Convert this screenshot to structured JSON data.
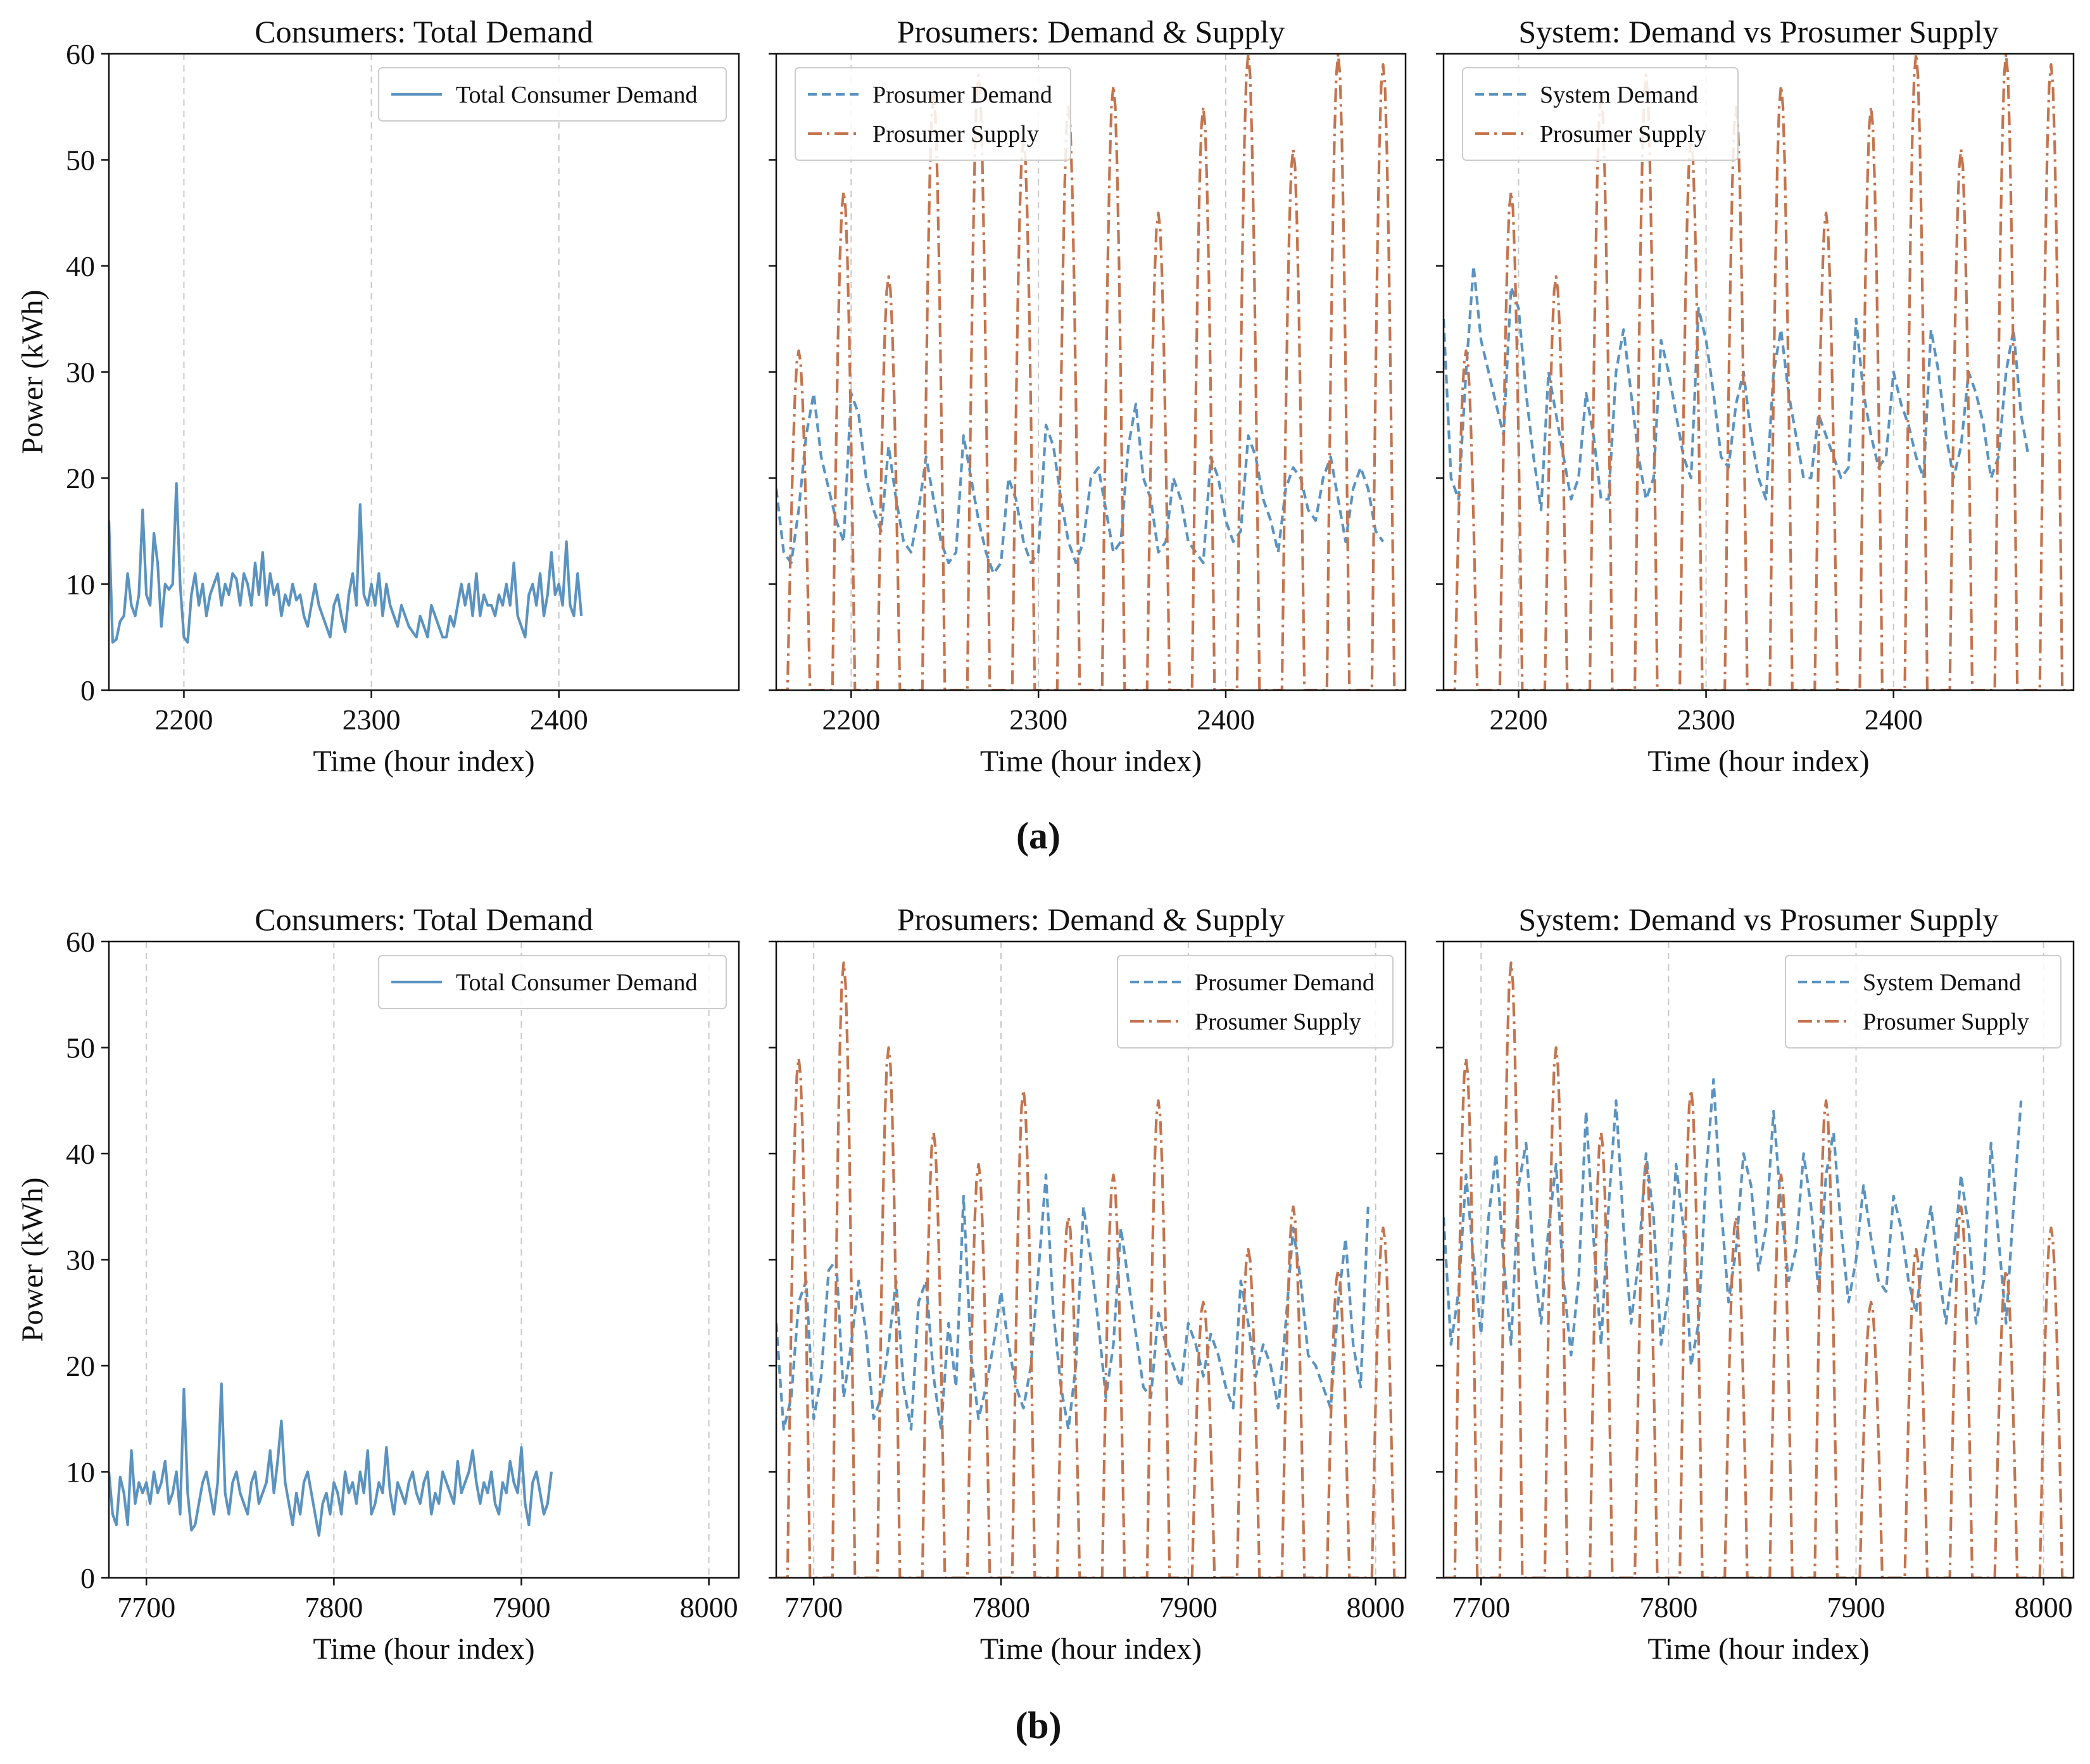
{
  "figure": {
    "subfigure_labels": [
      "(a)",
      "(b)"
    ]
  },
  "colors": {
    "demand": "#5b93c0",
    "supply": "#c4744e"
  },
  "chart_data": [
    {
      "type": "line",
      "row": 0,
      "col": 0,
      "title": "Consumers: Total Demand",
      "xlabel": "Time (hour index)",
      "ylabel": "Power (kWh)",
      "xlim": [
        2160,
        2496
      ],
      "ylim": [
        0,
        60
      ],
      "xticks": [
        2200,
        2300,
        2400
      ],
      "yticks": [
        0,
        10,
        20,
        30,
        40,
        50,
        60
      ],
      "legend_position": "top-right",
      "series": [
        {
          "name": "Total Consumer Demand",
          "style": "solid",
          "color_key": "demand",
          "x_start": 2160,
          "x_step": 2,
          "values": [
            16,
            4.5,
            4.8,
            6.5,
            7,
            11,
            8,
            7,
            9,
            17,
            9,
            8,
            14.8,
            12,
            6,
            10,
            9.5,
            10,
            19.5,
            10,
            5,
            4.5,
            9,
            11,
            8,
            10,
            7,
            9,
            10,
            11,
            8,
            10,
            9,
            11,
            10.5,
            8,
            11,
            10,
            8,
            12,
            9,
            13,
            8,
            11,
            9,
            10,
            7,
            9,
            8,
            10,
            8.5,
            9,
            7,
            6,
            8,
            10,
            8,
            7,
            6,
            5,
            8,
            9,
            7,
            5.5,
            9,
            11,
            8,
            17.5,
            9,
            8,
            10,
            8,
            11,
            7,
            10,
            8,
            7,
            6,
            8,
            7,
            6,
            5.5,
            5,
            7,
            6,
            5,
            8,
            7,
            6,
            5,
            5,
            7,
            6,
            8,
            10,
            8,
            10,
            7,
            11,
            7,
            9,
            8,
            8,
            7,
            9,
            8,
            10,
            8,
            12,
            7,
            6,
            5,
            9,
            10,
            8,
            11,
            7,
            9,
            13,
            9,
            10,
            8,
            14,
            8,
            7,
            11,
            7
          ]
        }
      ]
    },
    {
      "type": "line",
      "row": 0,
      "col": 1,
      "title": "Prosumers: Demand & Supply",
      "xlabel": "Time (hour index)",
      "xlim": [
        2160,
        2496
      ],
      "ylim": [
        0,
        60
      ],
      "xticks": [
        2200,
        2300,
        2400
      ],
      "legend_position": "top-left",
      "series": [
        {
          "name": "Prosumer Demand",
          "style": "dashed",
          "color_key": "demand",
          "x_start": 2160,
          "x_step": 4,
          "values": [
            19,
            13,
            12,
            17,
            24,
            28,
            22,
            19,
            16,
            14,
            28,
            26,
            20,
            17,
            15,
            23,
            18,
            14,
            13,
            17,
            22,
            18,
            14,
            12,
            13,
            24,
            20,
            16,
            13,
            11,
            12,
            20,
            18,
            14,
            12,
            13,
            25,
            23,
            18,
            14,
            12,
            14,
            20,
            21,
            17,
            13,
            14,
            23,
            27,
            20,
            18,
            13,
            14,
            20,
            18,
            14,
            13,
            12,
            22,
            20,
            16,
            14,
            15,
            24,
            22,
            18,
            16,
            13,
            19,
            21,
            20,
            17,
            16,
            20,
            22,
            18,
            14,
            19,
            21,
            19,
            15,
            14
          ]
        },
        {
          "name": "Prosumer Supply",
          "style": "dashdot",
          "color_key": "supply",
          "x_start": 2160,
          "period": 24,
          "peak_hour_offset": 12,
          "half_width": 6,
          "daily_peaks": [
            32,
            47,
            39,
            56,
            58,
            52,
            55,
            57,
            45,
            55,
            60,
            51,
            60,
            59
          ]
        }
      ]
    },
    {
      "type": "line",
      "row": 0,
      "col": 2,
      "title": "System: Demand vs Prosumer Supply",
      "xlabel": "Time (hour index)",
      "xlim": [
        2160,
        2496
      ],
      "ylim": [
        0,
        60
      ],
      "xticks": [
        2200,
        2300,
        2400
      ],
      "legend_position": "top-left",
      "series": [
        {
          "name": "System Demand",
          "style": "dashed",
          "color_key": "demand",
          "x_start": 2160,
          "x_step": 4,
          "values": [
            35,
            20,
            18,
            30,
            40,
            33,
            30,
            27,
            24,
            38,
            36,
            28,
            22,
            17,
            30,
            26,
            22,
            18,
            20,
            28,
            24,
            18,
            18,
            30,
            34,
            28,
            22,
            18,
            20,
            33,
            30,
            26,
            22,
            20,
            36,
            33,
            28,
            22,
            21,
            27,
            30,
            24,
            20,
            18,
            30,
            34,
            28,
            24,
            20,
            20,
            26,
            24,
            22,
            20,
            21,
            35,
            28,
            24,
            21,
            22,
            30,
            27,
            25,
            22,
            20,
            34,
            30,
            24,
            20,
            23,
            30,
            28,
            25,
            20,
            22,
            30,
            34,
            26,
            22
          ]
        },
        {
          "name": "Prosumer Supply",
          "style": "dashdot",
          "color_key": "supply",
          "x_start": 2160,
          "period": 24,
          "peak_hour_offset": 12,
          "half_width": 6,
          "daily_peaks": [
            32,
            47,
            39,
            56,
            58,
            52,
            55,
            57,
            45,
            55,
            60,
            51,
            60,
            59
          ]
        }
      ]
    },
    {
      "type": "line",
      "row": 1,
      "col": 0,
      "title": "Consumers: Total Demand",
      "xlabel": "Time (hour index)",
      "ylabel": "Power (kWh)",
      "xlim": [
        7680,
        8016
      ],
      "ylim": [
        0,
        60
      ],
      "xticks": [
        7700,
        7800,
        7900,
        8000
      ],
      "yticks": [
        0,
        10,
        20,
        30,
        40,
        50,
        60
      ],
      "legend_position": "top-right",
      "series": [
        {
          "name": "Total Consumer Demand",
          "style": "solid",
          "color_key": "demand",
          "x_start": 7680,
          "x_step": 2,
          "values": [
            10,
            6,
            5,
            9.5,
            8,
            5,
            12,
            7,
            9,
            8,
            9,
            7,
            10,
            8,
            9,
            11,
            7,
            8,
            10,
            6,
            17.8,
            8,
            4.5,
            5,
            7,
            9,
            10,
            8,
            6,
            9,
            18.3,
            8,
            6,
            9,
            10,
            8,
            7,
            6,
            9,
            10,
            7,
            8,
            9,
            12,
            8,
            11,
            14.8,
            9,
            7,
            5,
            8,
            6,
            9,
            10,
            8,
            6,
            4,
            7,
            8,
            6,
            9,
            8,
            6,
            10,
            8,
            9,
            7,
            10,
            8,
            12,
            6,
            7,
            9,
            8,
            12.3,
            8,
            6,
            9,
            8,
            7,
            9,
            10,
            8,
            7,
            9,
            10,
            6,
            8,
            7,
            10,
            9,
            8,
            7,
            11,
            8,
            9,
            10,
            12,
            9,
            7,
            9,
            8,
            10,
            7,
            6,
            9,
            8,
            11,
            9,
            8,
            12.3,
            7,
            5,
            9,
            10,
            8,
            6,
            7,
            10
          ]
        }
      ]
    },
    {
      "type": "line",
      "row": 1,
      "col": 1,
      "title": "Prosumers: Demand & Supply",
      "xlabel": "Time (hour index)",
      "xlim": [
        7680,
        8016
      ],
      "ylim": [
        0,
        60
      ],
      "xticks": [
        7700,
        7800,
        7900,
        8000
      ],
      "legend_position": "top-right",
      "series": [
        {
          "name": "Prosumer Demand",
          "style": "dashed",
          "color_key": "demand",
          "x_start": 7680,
          "x_step": 4,
          "values": [
            24,
            14,
            17,
            26,
            28,
            15,
            19,
            29,
            30,
            17,
            22,
            28,
            23,
            15,
            17,
            22,
            28,
            18,
            14,
            26,
            28,
            19,
            14,
            24,
            18,
            36,
            21,
            15,
            18,
            22,
            27,
            22,
            18,
            16,
            20,
            29,
            38,
            25,
            18,
            14,
            20,
            35,
            30,
            24,
            17,
            22,
            33,
            28,
            23,
            18,
            17,
            25,
            22,
            20,
            18,
            24,
            22,
            19,
            23,
            21,
            18,
            16,
            28,
            24,
            19,
            22,
            20,
            16,
            24,
            33,
            28,
            21,
            20,
            18,
            16,
            26,
            32,
            22,
            18,
            35
          ]
        },
        {
          "name": "Prosumer Supply",
          "style": "dashdot",
          "color_key": "supply",
          "x_start": 7680,
          "period": 24,
          "peak_hour_offset": 12,
          "half_width": 6,
          "daily_peaks": [
            49,
            58,
            50,
            42,
            39,
            46,
            34,
            38,
            45,
            26,
            31,
            35,
            29,
            33
          ]
        }
      ]
    },
    {
      "type": "line",
      "row": 1,
      "col": 2,
      "title": "System: Demand vs Prosumer Supply",
      "xlabel": "Time (hour index)",
      "xlim": [
        7680,
        8016
      ],
      "ylim": [
        0,
        60
      ],
      "xticks": [
        7700,
        7800,
        7900,
        8000
      ],
      "legend_position": "top-right",
      "series": [
        {
          "name": "System Demand",
          "style": "dashed",
          "color_key": "demand",
          "x_start": 7680,
          "x_step": 4,
          "values": [
            34,
            22,
            27,
            38,
            30,
            23,
            34,
            40,
            30,
            22,
            37,
            41,
            30,
            24,
            33,
            39,
            28,
            21,
            28,
            44,
            32,
            22,
            35,
            45,
            33,
            24,
            30,
            40,
            34,
            22,
            27,
            39,
            33,
            20,
            24,
            38,
            47,
            35,
            26,
            31,
            40,
            37,
            29,
            33,
            44,
            35,
            28,
            31,
            40,
            35,
            27,
            38,
            42,
            33,
            26,
            30,
            37,
            32,
            28,
            27,
            36,
            33,
            28,
            25,
            31,
            35,
            29,
            24,
            30,
            38,
            33,
            24,
            28,
            41,
            32,
            24,
            35,
            45
          ]
        },
        {
          "name": "Prosumer Supply",
          "style": "dashdot",
          "color_key": "supply",
          "x_start": 7680,
          "period": 24,
          "peak_hour_offset": 12,
          "half_width": 6,
          "daily_peaks": [
            49,
            58,
            50,
            42,
            39,
            46,
            34,
            38,
            45,
            26,
            31,
            35,
            29,
            33
          ]
        }
      ]
    }
  ]
}
